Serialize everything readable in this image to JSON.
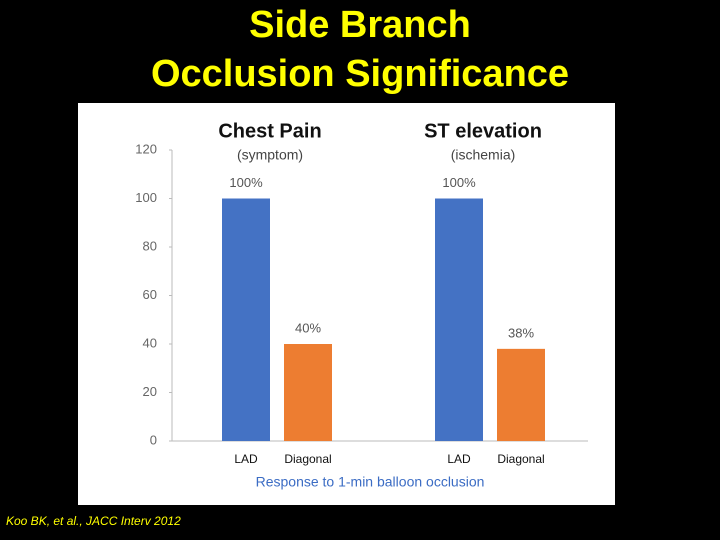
{
  "chart_data": {
    "type": "bar",
    "title": [
      "Side Branch",
      "Occlusion Significance"
    ],
    "ylim": [
      0,
      120
    ],
    "yticks": [
      0,
      20,
      40,
      60,
      80,
      100,
      120
    ],
    "colors": [
      "#4472c4",
      "#ed7d31"
    ],
    "groups": [
      {
        "title": "Chest Pain",
        "subtitle": "(symptom)",
        "categories": [
          "LAD",
          "Diagonal"
        ],
        "values": [
          100,
          40
        ],
        "value_labels": [
          "100%",
          "40%"
        ]
      },
      {
        "title": "ST elevation",
        "subtitle": "(ischemia)",
        "categories": [
          "LAD",
          "Diagonal"
        ],
        "values": [
          100,
          38
        ],
        "value_labels": [
          "100%",
          "38%"
        ]
      }
    ],
    "xlabel": "Response to 1-min balloon occlusion"
  },
  "footnote": "Koo BK, et al., JACC Interv 2012"
}
